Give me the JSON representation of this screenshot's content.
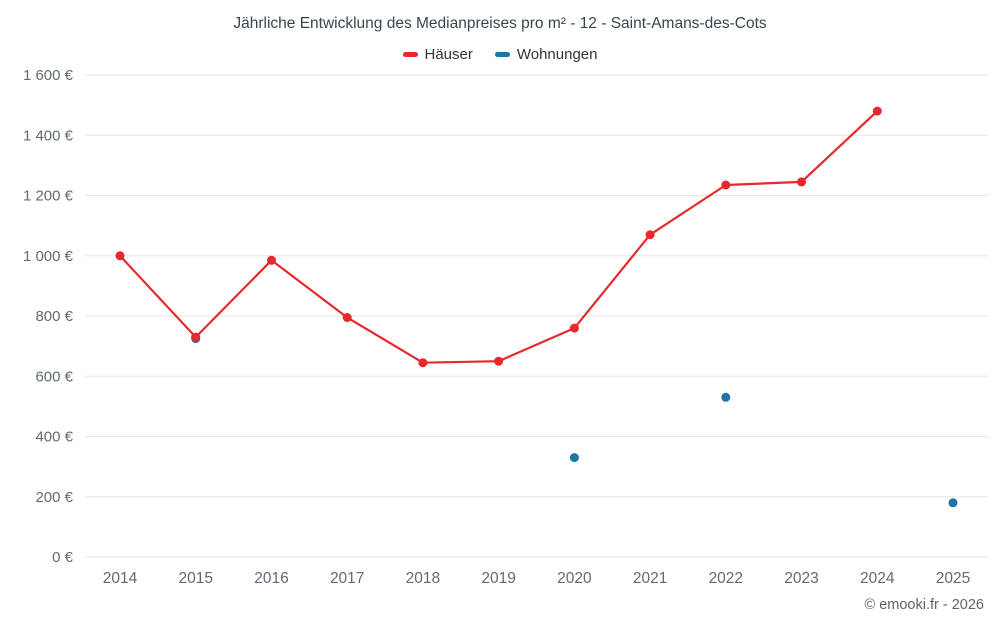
{
  "title": "Jährliche Entwicklung des Medianpreises pro m² - 12 - Saint-Amans-des-Cots",
  "footer": "© emooki.fr - 2026",
  "chart_data": {
    "type": "line",
    "x": [
      2014,
      2015,
      2016,
      2017,
      2018,
      2019,
      2020,
      2021,
      2022,
      2023,
      2024,
      2025
    ],
    "series": [
      {
        "name": "Häuser",
        "type": "line",
        "color": "#e7282d",
        "values": [
          1000,
          730,
          985,
          795,
          645,
          650,
          760,
          1070,
          1235,
          1245,
          1480,
          null
        ]
      },
      {
        "name": "Wohnungen",
        "type": "scatter",
        "color": "#1c74ab",
        "values": [
          null,
          725,
          null,
          null,
          null,
          null,
          330,
          null,
          530,
          null,
          null,
          180
        ]
      }
    ],
    "ylim": [
      0,
      1600
    ],
    "y_ticks": [
      0,
      200,
      400,
      600,
      800,
      1000,
      1200,
      1400,
      1600
    ],
    "y_suffix": " €",
    "grid": true,
    "grid_color": "#e6e6e6",
    "axis_label_color": "#5f6b74",
    "legend_position": "top"
  }
}
